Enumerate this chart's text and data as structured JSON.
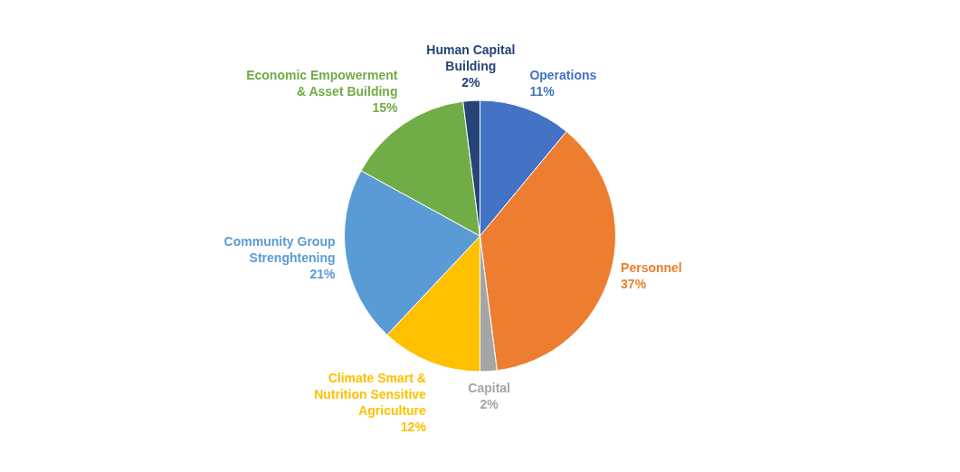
{
  "chart_data": {
    "type": "pie",
    "categories": [
      "Operations",
      "Personnel",
      "Capital",
      "Climate Smart & Nutrition Sensitive Agriculture",
      "Community Group Strenghtening",
      "Economic Empowerment & Asset Building",
      "Human Capital Building"
    ],
    "values": [
      11,
      37,
      2,
      12,
      21,
      15,
      2
    ],
    "value_labels": [
      "11%",
      "37%",
      "2%",
      "12%",
      "21%",
      "15%",
      "2%"
    ],
    "colors": [
      "#4472c4",
      "#ed7d31",
      "#a5a5a5",
      "#ffc000",
      "#5b9bd5",
      "#70ad47",
      "#264478"
    ]
  }
}
